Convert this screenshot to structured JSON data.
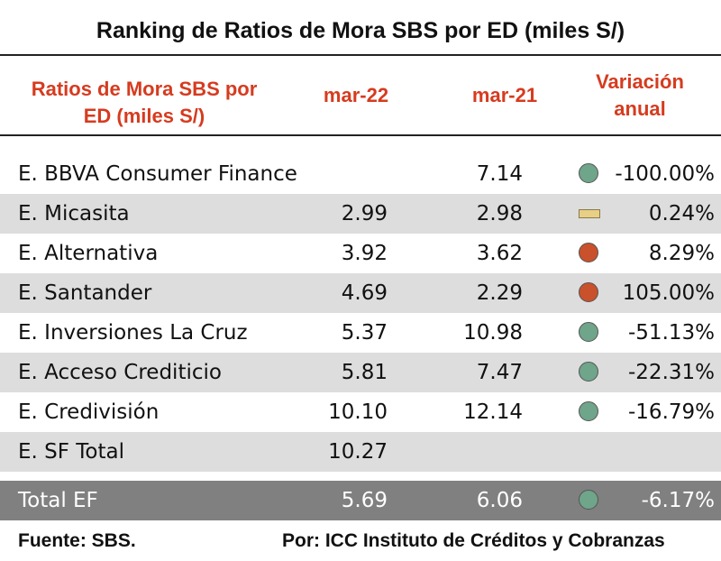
{
  "title": "Ranking de Ratios de Mora SBS por ED (miles S/)",
  "headers": {
    "entity": "Ratios de Mora SBS por ED (miles S/)",
    "entity_line1": "Ratios de Mora SBS por",
    "entity_line2": "ED (miles S/)",
    "col1": "mar-22",
    "col2": "mar-21",
    "col3_line1": "Variación",
    "col3_line2": "anual"
  },
  "colors": {
    "header_red": "#d63b1f",
    "green": "#6fa58a",
    "red": "#c9512b",
    "yellow": "#e8cf86",
    "shade": "#dddddd",
    "total_bg": "#808080"
  },
  "rows": [
    {
      "name": "E. BBVA Consumer Finance",
      "mar22": "",
      "mar21": "7.14",
      "indicator": "green-circle",
      "variation": "-100.00%"
    },
    {
      "name": "E. Micasita",
      "mar22": "2.99",
      "mar21": "2.98",
      "indicator": "yellow-dash",
      "variation": "0.24%"
    },
    {
      "name": "E. Alternativa",
      "mar22": "3.92",
      "mar21": "3.62",
      "indicator": "red-circle",
      "variation": "8.29%"
    },
    {
      "name": "E. Santander",
      "mar22": "4.69",
      "mar21": "2.29",
      "indicator": "red-circle",
      "variation": "105.00%"
    },
    {
      "name": "E. Inversiones La Cruz",
      "mar22": "5.37",
      "mar21": "10.98",
      "indicator": "green-circle",
      "variation": "-51.13%"
    },
    {
      "name": "E. Acceso Crediticio",
      "mar22": "5.81",
      "mar21": "7.47",
      "indicator": "green-circle",
      "variation": "-22.31%"
    },
    {
      "name": "E. Credivisión",
      "mar22": "10.10",
      "mar21": "12.14",
      "indicator": "green-circle",
      "variation": "-16.79%"
    },
    {
      "name": "E. SF Total",
      "mar22": "10.27",
      "mar21": "",
      "indicator": "",
      "variation": ""
    }
  ],
  "total": {
    "name": "Total EF",
    "mar22": "5.69",
    "mar21": "6.06",
    "indicator": "green-circle",
    "variation": "-6.17%"
  },
  "footer": {
    "source": "Fuente: SBS.",
    "credit": "Por: ICC Instituto de Créditos y Cobranzas"
  }
}
